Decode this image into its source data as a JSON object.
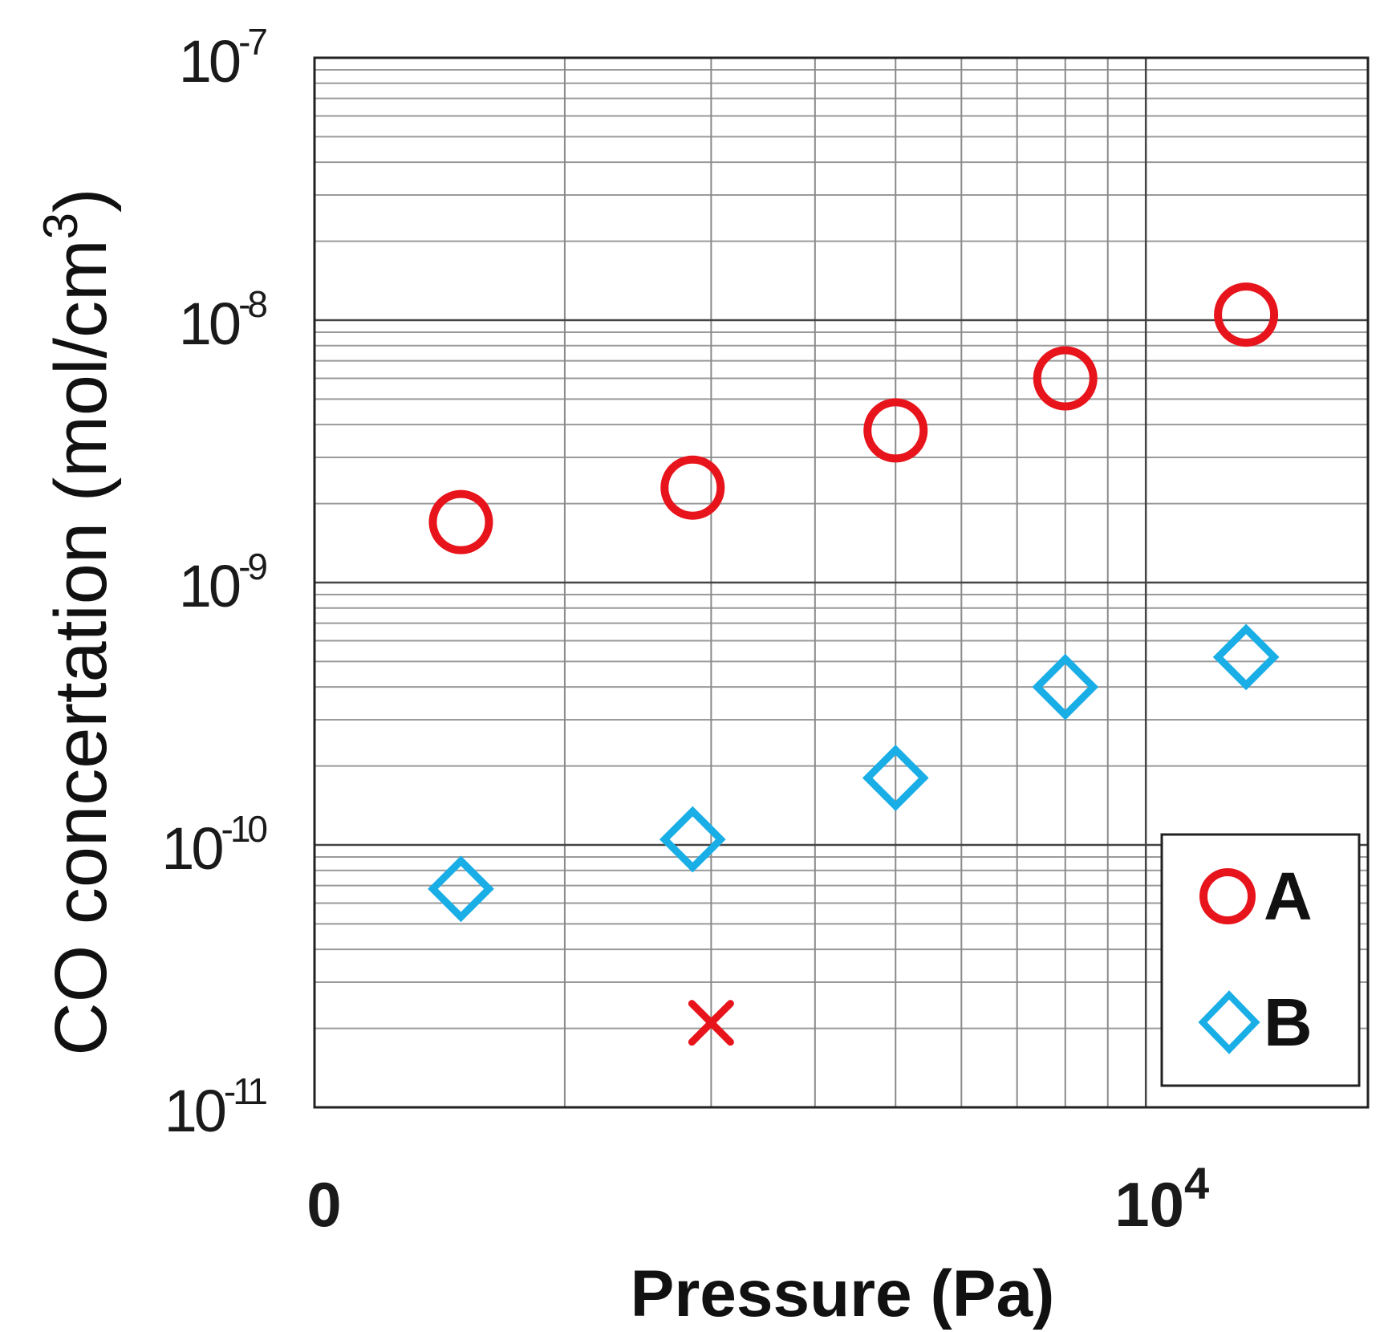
{
  "chart_data": {
    "type": "scatter",
    "title": "",
    "xlabel": "Pressure (Pa)",
    "ylabel": "CO concertation (mol/cm",
    "ylabel_sup": "3",
    "ylabel_close": ")",
    "x_scale": "log",
    "y_scale": "log",
    "xlim": [
      1000,
      18500
    ],
    "ylim": [
      1e-11,
      1e-07
    ],
    "grid": true,
    "legend_position": "bottom-right",
    "x_ticks": [
      {
        "value": 1000,
        "label": "0"
      },
      {
        "value": 10000,
        "label": "10",
        "sup": "4"
      }
    ],
    "y_ticks": [
      {
        "value": 1e-07,
        "base": "10",
        "exp": "-7"
      },
      {
        "value": 1e-08,
        "base": "10",
        "exp": "-8"
      },
      {
        "value": 1e-09,
        "base": "10",
        "exp": "-9"
      },
      {
        "value": 1e-10,
        "base": "10",
        "exp": "-10"
      },
      {
        "value": 1e-11,
        "base": "10",
        "exp": "-11"
      }
    ],
    "series": [
      {
        "name": "A",
        "marker": "circle",
        "color": "#e8141c",
        "points": [
          {
            "x": 1500,
            "y": 1.7e-09
          },
          {
            "x": 2850,
            "y": 2.3e-09
          },
          {
            "x": 5000,
            "y": 3.8e-09
          },
          {
            "x": 8000,
            "y": 6e-09
          },
          {
            "x": 13200,
            "y": 1.05e-08
          }
        ]
      },
      {
        "name": "B",
        "marker": "diamond",
        "color": "#19aee6",
        "points": [
          {
            "x": 1500,
            "y": 6.8e-11
          },
          {
            "x": 2850,
            "y": 1.05e-10
          },
          {
            "x": 5000,
            "y": 1.8e-10
          },
          {
            "x": 8000,
            "y": 4e-10
          },
          {
            "x": 13200,
            "y": 5.2e-10
          }
        ]
      }
    ],
    "annotations": [
      {
        "marker": "cross",
        "color": "#e8141c",
        "x": 3000,
        "y": 2.1e-11
      }
    ]
  }
}
